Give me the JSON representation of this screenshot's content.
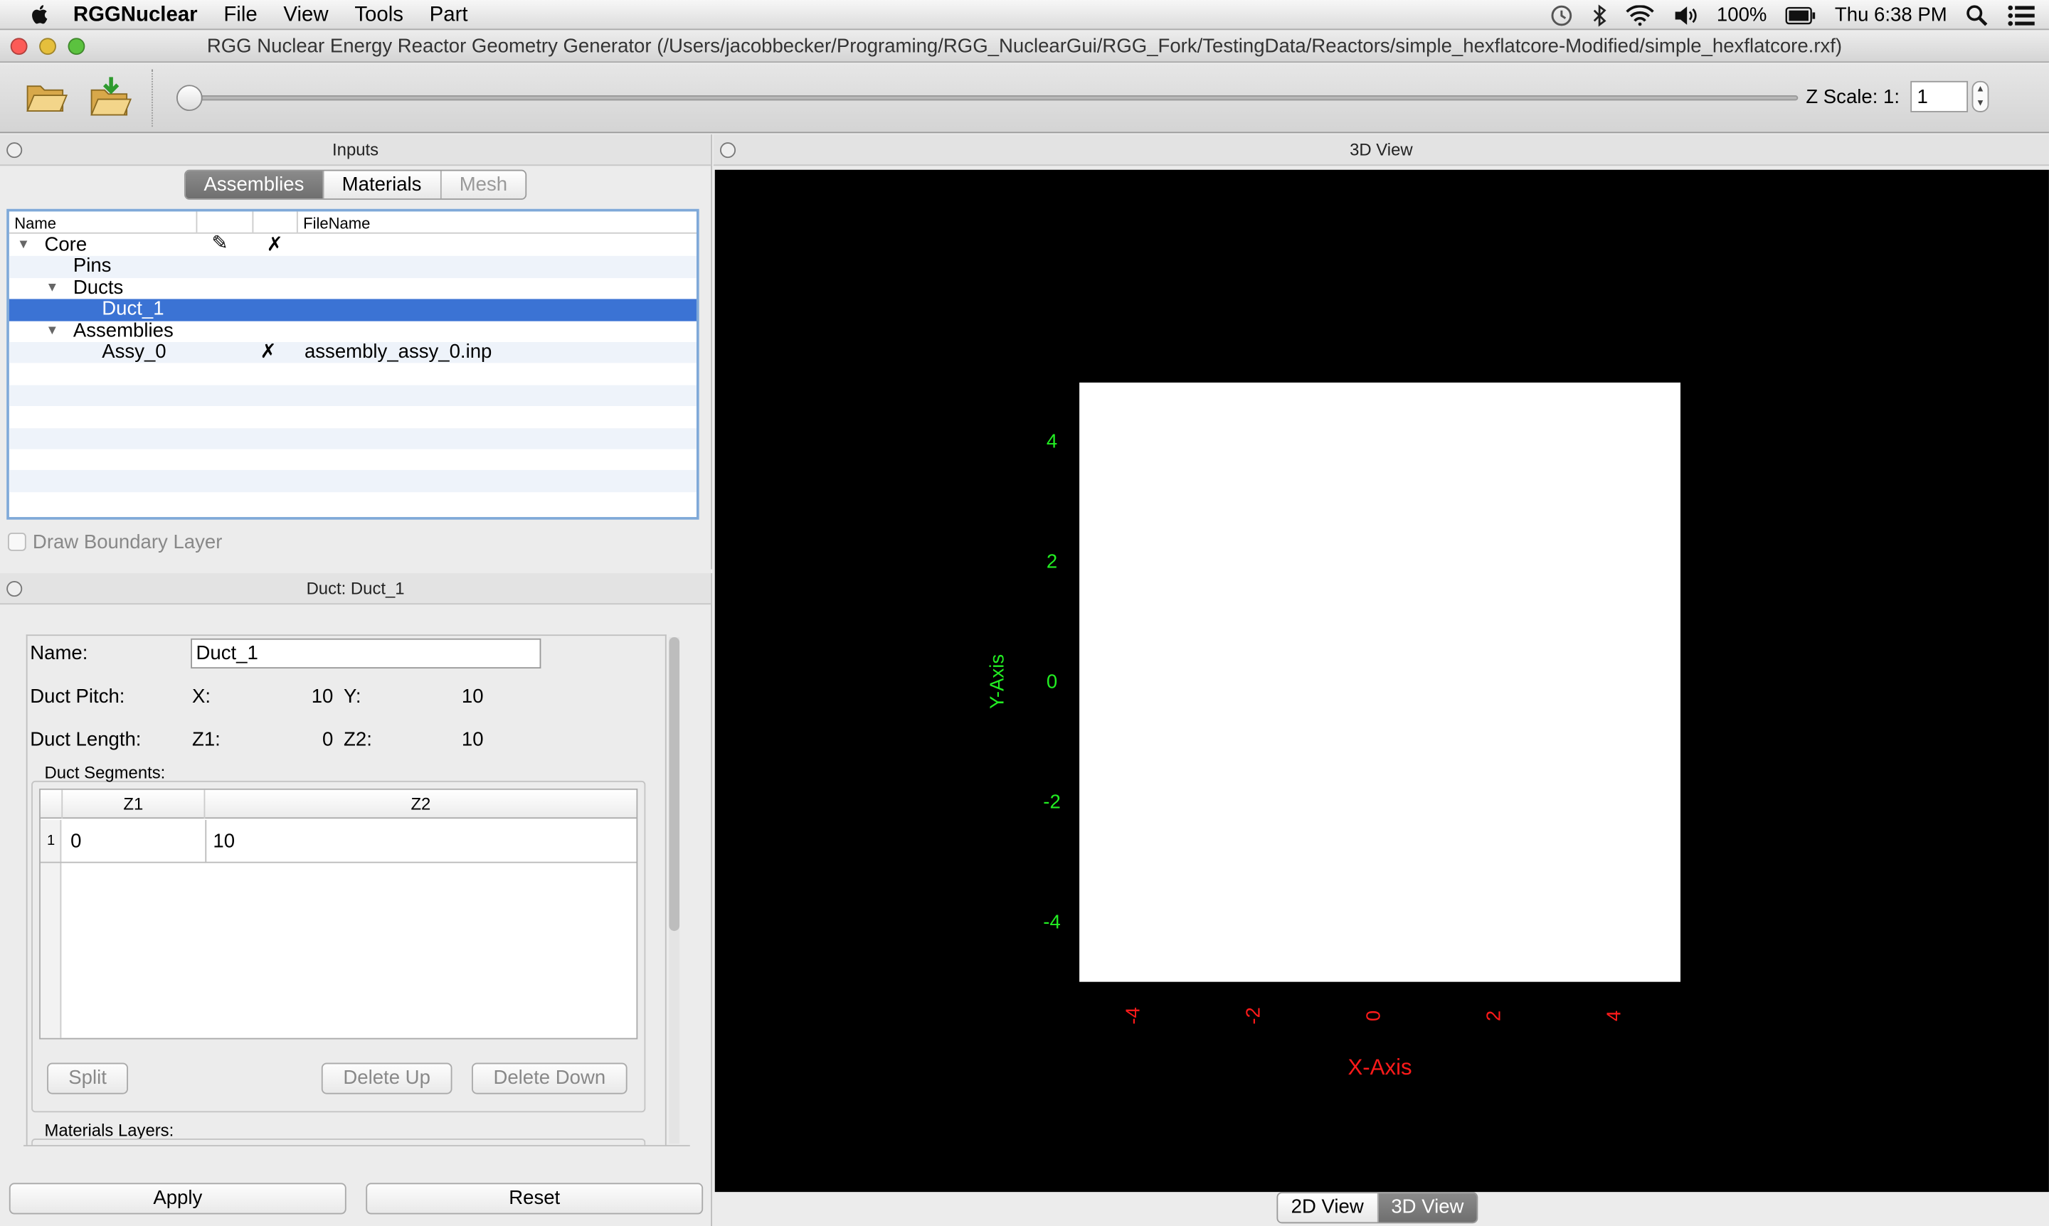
{
  "menubar": {
    "app_name": "RGGNuclear",
    "items": [
      "File",
      "View",
      "Tools",
      "Part"
    ],
    "battery": "100%",
    "clock": "Thu 6:38 PM"
  },
  "window": {
    "title": "RGG Nuclear Energy Reactor Geometry Generator (/Users/jacobbecker/Programing/RGG_NuclearGui/RGG_Fork/TestingData/Reactors/simple_hexflatcore-Modified/simple_hexflatcore.rxf)"
  },
  "toolbar": {
    "zscale_label": "Z Scale: 1:",
    "zscale_value": "1",
    "slider_level": 0
  },
  "inputs_panel": {
    "title": "Inputs",
    "tabs": [
      "Assemblies",
      "Materials",
      "Mesh"
    ],
    "columns": {
      "name": "Name",
      "filename": "FileName"
    },
    "tree": [
      {
        "label": "Core",
        "level": 0,
        "expanded": true,
        "edit_icon": true,
        "mark": "✗",
        "file": ""
      },
      {
        "label": "Pins",
        "level": 1,
        "expanded": null,
        "mark": "",
        "file": ""
      },
      {
        "label": "Ducts",
        "level": 1,
        "expanded": true,
        "mark": "",
        "file": ""
      },
      {
        "label": "Duct_1",
        "level": 2,
        "expanded": null,
        "mark": "",
        "file": "",
        "selected": true
      },
      {
        "label": "Assemblies",
        "level": 1,
        "expanded": true,
        "mark": "",
        "file": ""
      },
      {
        "label": "Assy_0",
        "level": 2,
        "expanded": null,
        "mark": "✗",
        "file": "assembly_assy_0.inp"
      }
    ],
    "draw_boundary_label": "Draw Boundary Layer",
    "draw_boundary_checked": false
  },
  "duct_panel": {
    "title": "Duct: Duct_1",
    "name_label": "Name:",
    "name_value": "Duct_1",
    "pitch_label": "Duct Pitch:",
    "pitch_x_label": "X:",
    "pitch_x": "10",
    "pitch_y_label": "Y:",
    "pitch_y": "10",
    "length_label": "Duct Length:",
    "z1_label": "Z1:",
    "z1": "0",
    "z2_label": "Z2:",
    "z2": "10",
    "segments_label": "Duct Segments:",
    "seg_cols": [
      "Z1",
      "Z2"
    ],
    "segments": [
      {
        "num": "1",
        "z1": "0",
        "z2": "10"
      }
    ],
    "split_label": "Split",
    "delete_up_label": "Delete Up",
    "delete_down_label": "Delete Down",
    "materials_layers_label": "Materials Layers:",
    "apply_label": "Apply",
    "reset_label": "Reset"
  },
  "view_panel": {
    "title": "3D View",
    "y_axis_label": "Y-Axis",
    "x_axis_label": "X-Axis",
    "y_ticks": [
      "4",
      "2",
      "0",
      "-2",
      "-4"
    ],
    "x_ticks": [
      "-4",
      "-2",
      "0",
      "2",
      "4"
    ],
    "x_color": "#ff1a1a",
    "y_color": "#22ee22",
    "view_tabs": [
      "2D View",
      "3D View"
    ],
    "selected_view": "3D View"
  }
}
